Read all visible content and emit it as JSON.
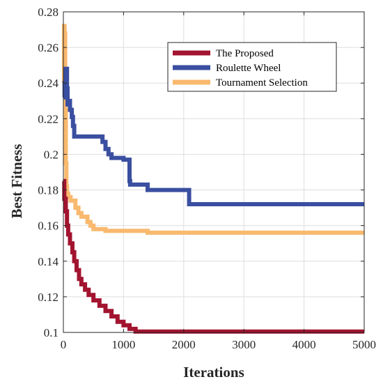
{
  "chart_data": {
    "type": "line",
    "title": "",
    "xlabel": "Iterations",
    "ylabel": "Best Fitness",
    "xlim": [
      0,
      5000
    ],
    "ylim": [
      0.1,
      0.28
    ],
    "xticks": [
      0,
      1000,
      2000,
      3000,
      4000,
      5000
    ],
    "yticks": [
      0.1,
      0.12,
      0.14,
      0.16,
      0.18,
      0.2,
      0.22,
      0.24,
      0.26,
      0.28
    ],
    "xtick_labels": [
      "0",
      "1000",
      "2000",
      "3000",
      "4000",
      "5000"
    ],
    "ytick_labels": [
      "0.1",
      "0.12",
      "0.14",
      "0.16",
      "0.18",
      "0.2",
      "0.22",
      "0.24",
      "0.26",
      "0.28"
    ],
    "grid": true,
    "legend_position": "top-right",
    "series": [
      {
        "name": "The Proposed",
        "color": "#A2142F",
        "points": [
          [
            0,
            0.185
          ],
          [
            15,
            0.175
          ],
          [
            40,
            0.168
          ],
          [
            60,
            0.16
          ],
          [
            80,
            0.155
          ],
          [
            110,
            0.15
          ],
          [
            150,
            0.145
          ],
          [
            180,
            0.14
          ],
          [
            220,
            0.135
          ],
          [
            260,
            0.13
          ],
          [
            300,
            0.127
          ],
          [
            360,
            0.124
          ],
          [
            420,
            0.121
          ],
          [
            500,
            0.118
          ],
          [
            600,
            0.115
          ],
          [
            700,
            0.112
          ],
          [
            800,
            0.109
          ],
          [
            900,
            0.106
          ],
          [
            1000,
            0.104
          ],
          [
            1100,
            0.102
          ],
          [
            1200,
            0.1005
          ],
          [
            1500,
            0.1005
          ],
          [
            2000,
            0.1005
          ],
          [
            3000,
            0.1005
          ],
          [
            4000,
            0.1005
          ],
          [
            5000,
            0.1005
          ]
        ]
      },
      {
        "name": "Roulette Wheel",
        "color": "#3A4FA0",
        "points": [
          [
            0,
            0.232
          ],
          [
            20,
            0.24
          ],
          [
            40,
            0.248
          ],
          [
            60,
            0.237
          ],
          [
            70,
            0.228
          ],
          [
            90,
            0.23
          ],
          [
            110,
            0.225
          ],
          [
            140,
            0.221
          ],
          [
            160,
            0.216
          ],
          [
            180,
            0.21
          ],
          [
            300,
            0.21
          ],
          [
            400,
            0.21
          ],
          [
            500,
            0.21
          ],
          [
            600,
            0.21
          ],
          [
            650,
            0.207
          ],
          [
            700,
            0.203
          ],
          [
            750,
            0.2
          ],
          [
            800,
            0.198
          ],
          [
            900,
            0.198
          ],
          [
            1000,
            0.197
          ],
          [
            1080,
            0.197
          ],
          [
            1100,
            0.185
          ],
          [
            1110,
            0.183
          ],
          [
            1200,
            0.183
          ],
          [
            1350,
            0.183
          ],
          [
            1400,
            0.18
          ],
          [
            1600,
            0.18
          ],
          [
            2000,
            0.18
          ],
          [
            2080,
            0.18
          ],
          [
            2090,
            0.172
          ],
          [
            2500,
            0.172
          ],
          [
            3000,
            0.172
          ],
          [
            4000,
            0.172
          ],
          [
            5000,
            0.172
          ]
        ]
      },
      {
        "name": "Tournament Selection",
        "color": "#F9B96E",
        "points": [
          [
            0,
            0.24
          ],
          [
            10,
            0.272
          ],
          [
            20,
            0.268
          ],
          [
            30,
            0.225
          ],
          [
            40,
            0.195
          ],
          [
            50,
            0.182
          ],
          [
            60,
            0.178
          ],
          [
            80,
            0.176
          ],
          [
            120,
            0.174
          ],
          [
            200,
            0.17
          ],
          [
            250,
            0.167
          ],
          [
            300,
            0.165
          ],
          [
            400,
            0.162
          ],
          [
            450,
            0.16
          ],
          [
            500,
            0.158
          ],
          [
            700,
            0.157
          ],
          [
            900,
            0.157
          ],
          [
            1200,
            0.157
          ],
          [
            1400,
            0.156
          ],
          [
            2000,
            0.156
          ],
          [
            3000,
            0.156
          ],
          [
            4000,
            0.156
          ],
          [
            5000,
            0.156
          ]
        ]
      }
    ]
  }
}
